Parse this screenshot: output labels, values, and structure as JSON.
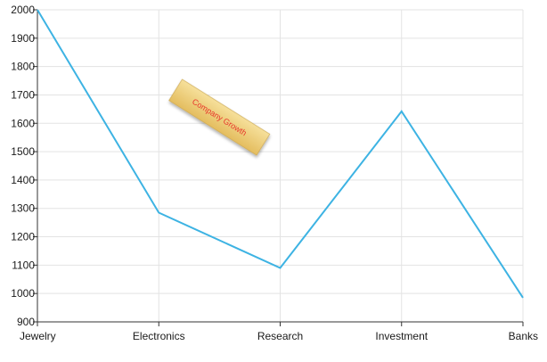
{
  "chart_data": {
    "type": "line",
    "categories": [
      "Jewelry",
      "Electronics",
      "Research",
      "Investment",
      "Banks"
    ],
    "series": [
      {
        "values": [
          2000,
          1285,
          1090,
          1642,
          985
        ],
        "color": "#3db3e3"
      }
    ],
    "xlabel": "",
    "ylabel": "",
    "ylim": [
      900,
      2000
    ],
    "yticks": [
      900,
      1000,
      1100,
      1200,
      1300,
      1400,
      1500,
      1600,
      1700,
      1800,
      1900,
      2000
    ],
    "grid": true,
    "annotations": [
      {
        "text": "Company Growth",
        "text_color": "#e8362b",
        "background": "#f0d27e",
        "anchor_category": "Electronics",
        "anchor_value": 1640
      }
    ]
  }
}
